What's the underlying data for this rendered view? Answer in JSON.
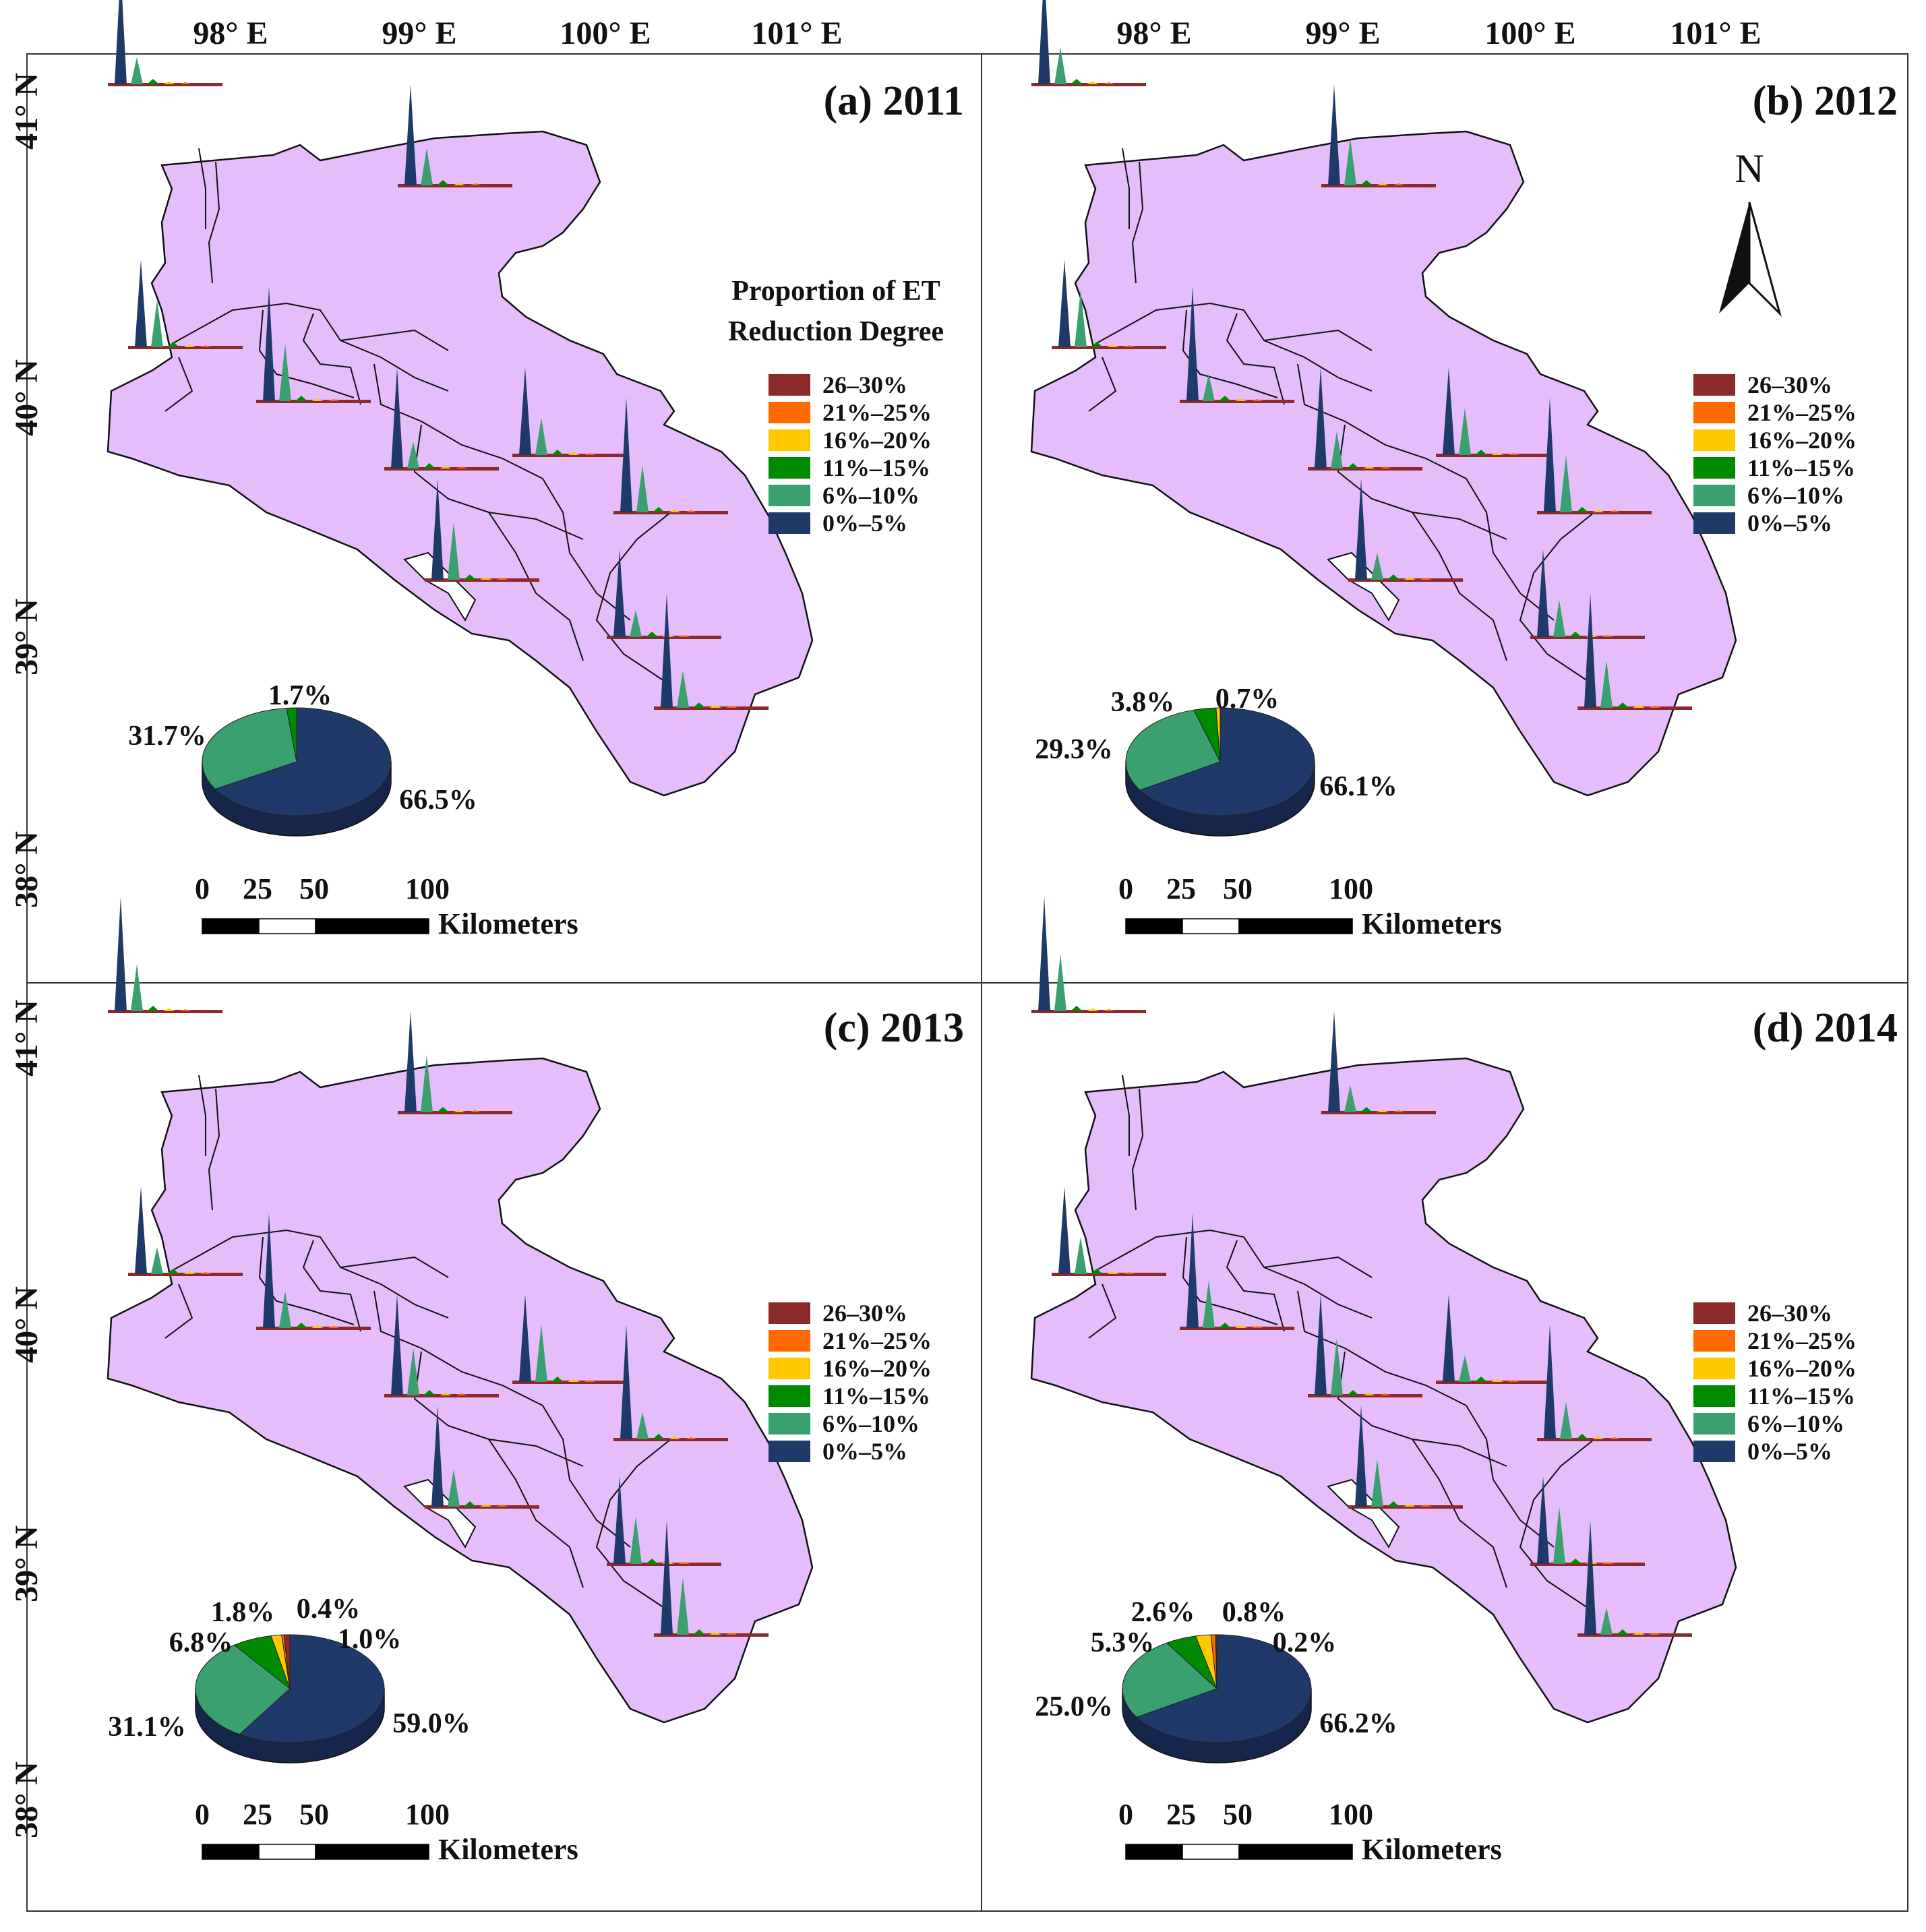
{
  "figure": {
    "lon_labels": [
      "98° E",
      "99° E",
      "100° E",
      "101° E"
    ],
    "lat_labels": [
      "41° N",
      "40° N",
      "39° N",
      "38° N"
    ],
    "legend_title_line1": "Proportion of ET",
    "legend_title_line2": "Reduction Degree",
    "legend_categories": [
      {
        "label": "26–30%",
        "color": "#8b2a2a"
      },
      {
        "label": "21%–25%",
        "color": "#ff6a00"
      },
      {
        "label": "16%–20%",
        "color": "#ffc800"
      },
      {
        "label": "11%–15%",
        "color": "#008a00"
      },
      {
        "label": "6%–10%",
        "color": "#3aa070"
      },
      {
        "label": "0%–5%",
        "color": "#1f3a68"
      }
    ],
    "scale": {
      "labels": [
        "0",
        "25",
        "50",
        "100"
      ],
      "unit": "Kilometers"
    },
    "north_label": "N",
    "map_fill": "#e4bdfa",
    "panels": [
      {
        "title": "(a) 2011",
        "pie_labels": [
          "1.7%",
          "31.7%",
          "66.5%"
        ]
      },
      {
        "title": "(b) 2012",
        "pie_labels": [
          "3.8%",
          "0.7%",
          "29.3%",
          "66.1%"
        ]
      },
      {
        "title": "(c) 2013",
        "pie_labels": [
          "1.8%",
          "0.4%",
          "6.8%",
          "1.0%",
          "31.1%",
          "59.0%"
        ]
      },
      {
        "title": "(d) 2014",
        "pie_labels": [
          "2.6%",
          "0.8%",
          "5.3%",
          "0.2%",
          "25.0%",
          "66.2%"
        ]
      }
    ]
  },
  "chart_data": [
    {
      "type": "pie",
      "title": "(a) 2011",
      "categories": [
        "0%–5%",
        "6%–10%",
        "11%–15%"
      ],
      "values": [
        66.5,
        31.7,
        1.7
      ]
    },
    {
      "type": "pie",
      "title": "(b) 2012",
      "categories": [
        "0%–5%",
        "6%–10%",
        "11%–15%",
        "16%–20%"
      ],
      "values": [
        66.1,
        29.3,
        3.8,
        0.7
      ]
    },
    {
      "type": "pie",
      "title": "(c) 2013",
      "categories": [
        "0%–5%",
        "6%–10%",
        "11%–15%",
        "16%–20%",
        "21%–25%",
        "26–30%"
      ],
      "values": [
        59.0,
        31.1,
        6.8,
        1.8,
        0.4,
        1.0
      ]
    },
    {
      "type": "pie",
      "title": "(d) 2014",
      "categories": [
        "0%–5%",
        "6%–10%",
        "11%–15%",
        "16%–20%",
        "21%–25%",
        "26–30%"
      ],
      "values": [
        66.2,
        25.0,
        5.3,
        2.6,
        0.8,
        0.2
      ]
    }
  ]
}
